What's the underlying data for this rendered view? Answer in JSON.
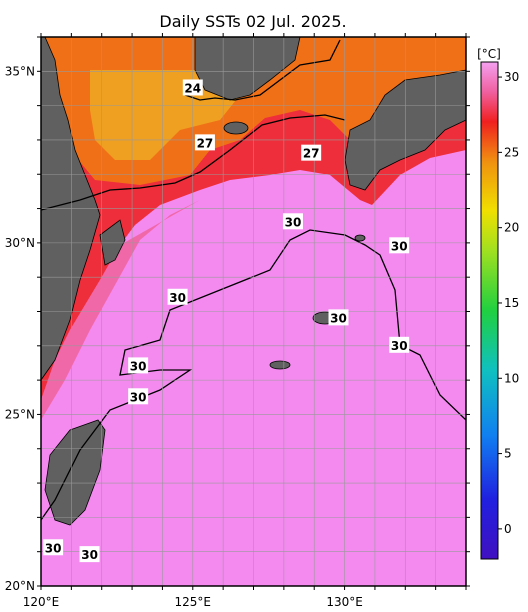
{
  "title": "Daily SSTs 02 Jul. 2025.",
  "map": {
    "lon_range": [
      120,
      134
    ],
    "lat_range": [
      20,
      36
    ],
    "lon_ticks": [
      {
        "value": 120,
        "label": "120°E"
      },
      {
        "value": 125,
        "label": "125°E"
      },
      {
        "value": 130,
        "label": "130°E"
      }
    ],
    "lat_ticks": [
      {
        "value": 35,
        "label": "35°N"
      },
      {
        "value": 30,
        "label": "30°N"
      },
      {
        "value": 25,
        "label": "25°N"
      },
      {
        "value": 20,
        "label": "20°N"
      }
    ],
    "contour_labels": [
      {
        "text": "24",
        "lon": 125.0,
        "lat": 34.5
      },
      {
        "text": "27",
        "lon": 125.4,
        "lat": 32.9
      },
      {
        "text": "27",
        "lon": 128.9,
        "lat": 32.6
      },
      {
        "text": "30",
        "lon": 128.3,
        "lat": 30.6
      },
      {
        "text": "30",
        "lon": 131.8,
        "lat": 29.9
      },
      {
        "text": "30",
        "lon": 124.5,
        "lat": 28.4
      },
      {
        "text": "30",
        "lon": 129.8,
        "lat": 27.8
      },
      {
        "text": "30",
        "lon": 131.8,
        "lat": 27.0
      },
      {
        "text": "30",
        "lon": 123.2,
        "lat": 26.4
      },
      {
        "text": "30",
        "lon": 123.2,
        "lat": 25.5
      },
      {
        "text": "30",
        "lon": 120.4,
        "lat": 21.1
      },
      {
        "text": "30",
        "lon": 121.6,
        "lat": 20.9
      }
    ]
  },
  "colorbar": {
    "unit": "[°C]",
    "ticks": [
      "0",
      "5",
      "10",
      "15",
      "20",
      "25",
      "30"
    ],
    "range": [
      -2,
      31
    ]
  },
  "colors": {
    "warm_pink": "#f48af0",
    "red": "#ee2222",
    "orange": "#f07018",
    "land": "#606060"
  }
}
